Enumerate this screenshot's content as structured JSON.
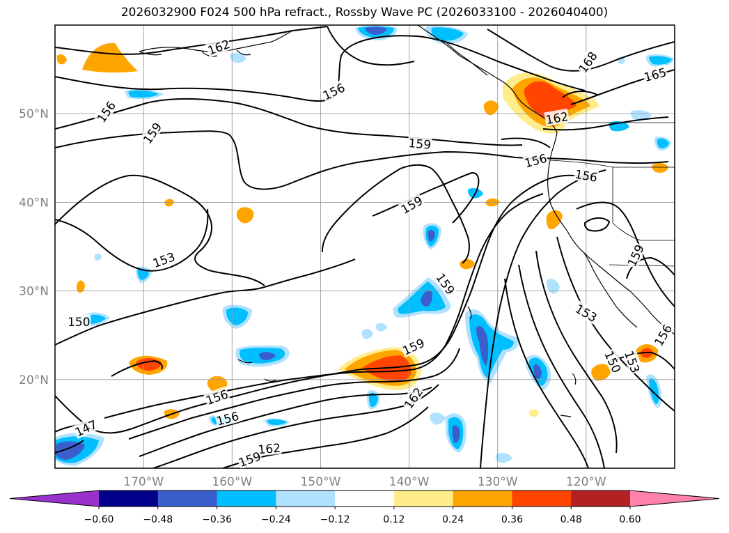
{
  "title": "2026032900 F024 500 hPa refract., Rossby Wave PC (2026033100 - 2026040400)",
  "map": {
    "lon_range": [
      -180,
      -110
    ],
    "lat_range": [
      10,
      60
    ],
    "lat_ticks": [
      {
        "value": 20,
        "label": "20°N"
      },
      {
        "value": 30,
        "label": "30°N"
      },
      {
        "value": 40,
        "label": "40°N"
      },
      {
        "value": 50,
        "label": "50°N"
      }
    ],
    "lon_ticks": [
      {
        "value": -170,
        "label": "170°W"
      },
      {
        "value": -160,
        "label": "160°W"
      },
      {
        "value": -150,
        "label": "150°W"
      },
      {
        "value": -140,
        "label": "140°W"
      },
      {
        "value": -130,
        "label": "130°W"
      },
      {
        "value": -120,
        "label": "120°W"
      }
    ],
    "contour_labels": [
      {
        "text": "162",
        "lon": -161.5,
        "lat": 57.5,
        "rot": -20
      },
      {
        "text": "156",
        "lon": -148.5,
        "lat": 52.5,
        "rot": -25
      },
      {
        "text": "156",
        "lon": -174.2,
        "lat": 50.2,
        "rot": -55
      },
      {
        "text": "159",
        "lon": -169.0,
        "lat": 47.8,
        "rot": -55
      },
      {
        "text": "159",
        "lon": -138.8,
        "lat": 46.6,
        "rot": 5
      },
      {
        "text": "156",
        "lon": -125.7,
        "lat": 44.7,
        "rot": -15
      },
      {
        "text": "156",
        "lon": -120.0,
        "lat": 43.0,
        "rot": 10
      },
      {
        "text": "162",
        "lon": -123.3,
        "lat": 49.5,
        "rot": -10
      },
      {
        "text": "168",
        "lon": -119.8,
        "lat": 55.8,
        "rot": -55
      },
      {
        "text": "165",
        "lon": -112.2,
        "lat": 54.4,
        "rot": -15
      },
      {
        "text": "159",
        "lon": -139.7,
        "lat": 39.7,
        "rot": -30
      },
      {
        "text": "153",
        "lon": -167.7,
        "lat": 33.5,
        "rot": -20
      },
      {
        "text": "159",
        "lon": -114.4,
        "lat": 34.0,
        "rot": -65
      },
      {
        "text": "159",
        "lon": -135.9,
        "lat": 30.8,
        "rot": 55
      },
      {
        "text": "153",
        "lon": -120.0,
        "lat": 27.5,
        "rot": 30
      },
      {
        "text": "150",
        "lon": -177.3,
        "lat": 26.5,
        "rot": 0
      },
      {
        "text": "159",
        "lon": -139.5,
        "lat": 23.7,
        "rot": -25
      },
      {
        "text": "153",
        "lon": -114.8,
        "lat": 22.0,
        "rot": 70
      },
      {
        "text": "150",
        "lon": -117.0,
        "lat": 22.0,
        "rot": 65
      },
      {
        "text": "156",
        "lon": -161.7,
        "lat": 18.0,
        "rot": -20
      },
      {
        "text": "162",
        "lon": -139.5,
        "lat": 17.9,
        "rot": -55
      },
      {
        "text": "156",
        "lon": -160.5,
        "lat": 15.6,
        "rot": -15
      },
      {
        "text": "147",
        "lon": -176.5,
        "lat": 14.5,
        "rot": -25
      },
      {
        "text": "162",
        "lon": -155.8,
        "lat": 12.2,
        "rot": -5
      },
      {
        "text": "159",
        "lon": -158.0,
        "lat": 11.0,
        "rot": -20
      },
      {
        "text": "156",
        "lon": -111.3,
        "lat": 25.0,
        "rot": -60
      }
    ]
  },
  "colorbar": {
    "tick_labels": [
      "−0.60",
      "−0.48",
      "−0.36",
      "−0.24",
      "−0.12",
      "0.12",
      "0.24",
      "0.36",
      "0.48",
      "0.60"
    ],
    "colors": [
      "#9932cc",
      "#00008b",
      "#3a5fcd",
      "#00bfff",
      "#b0e2ff",
      "#ffffff",
      "#ffec8b",
      "#ffa500",
      "#ff4500",
      "#b22222",
      "#ff82ab"
    ]
  }
}
